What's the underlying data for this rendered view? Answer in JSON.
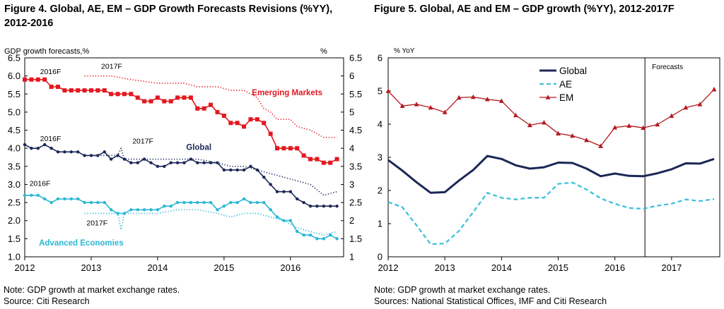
{
  "colors": {
    "em": "#e3181f",
    "global": "#1b2756",
    "ae": "#2bb7d4",
    "em2": "#b3191f",
    "ae2": "#3ec1dd"
  },
  "figure4": {
    "title_line1": "Figure 4. Global, AE, EM – GDP Growth Forecasts Revisions (%YY),",
    "title_line2": "2012-2016",
    "note": "Note: GDP growth at market exchange rates.",
    "source": "Source: Citi Research"
  },
  "figure5": {
    "title": "Figure 5. Global, AE and EM – GDP growth (%YY), 2012-2017F",
    "note": "Note: GDP growth at market exchange rates.",
    "source": "Sources: National Statistical Offices, IMF and Citi Research"
  },
  "chart_data": [
    {
      "type": "line",
      "ylabel_left": "GDP growth forecasts,%",
      "ylabel_right": "%",
      "xlim": [
        2012,
        2016.8
      ],
      "ylim": [
        1.0,
        6.5
      ],
      "xticks": [
        2012,
        2013,
        2014,
        2015,
        2016
      ],
      "xtick_labels": [
        "2012",
        "2013",
        "2014",
        "2015",
        "2016"
      ],
      "yticks": [
        1.0,
        1.5,
        2.0,
        2.5,
        3.0,
        3.5,
        4.0,
        4.5,
        5.0,
        5.5,
        6.0,
        6.5
      ],
      "ytick_labels_left": [
        "1.0",
        "1.5",
        "2.0",
        "2.5",
        "3.0",
        "3.5",
        "4.0",
        "4.5",
        "5.0",
        "5.5",
        "6.0",
        "6.5"
      ],
      "ytick_labels_right": [
        "1",
        "1.5",
        "2",
        "2.5",
        "3",
        "3.5",
        "4",
        "4.5",
        "5",
        "5.5",
        "6",
        "6.5"
      ],
      "annotations": [
        {
          "text": "2016F",
          "x": 2012.23,
          "y": 6.05
        },
        {
          "text": "2017F",
          "x": 2013.15,
          "y": 6.2
        },
        {
          "text": "2016F",
          "x": 2012.23,
          "y": 4.2
        },
        {
          "text": "2017F",
          "x": 2013.62,
          "y": 4.13
        },
        {
          "text": "2016F",
          "x": 2012.07,
          "y": 2.96
        },
        {
          "text": "2017F",
          "x": 2012.93,
          "y": 1.87
        }
      ],
      "series_labels": [
        {
          "text": "Emerging Markets",
          "series": "EM 2016F",
          "x": 2015.95,
          "y": 5.47
        },
        {
          "text": "Global",
          "series": "Global 2016F",
          "x": 2014.62,
          "y": 3.95
        },
        {
          "text": "Advanced Economies",
          "series": "AE 2016F",
          "x": 2012.85,
          "y": 1.31
        }
      ],
      "series": [
        {
          "name": "EM 2016F",
          "style": "solid-square",
          "color": "em",
          "x": [
            2012.0,
            2012.1,
            2012.2,
            2012.3,
            2012.4,
            2012.5,
            2012.6,
            2012.7,
            2012.8,
            2012.9,
            2013.0,
            2013.1,
            2013.2,
            2013.3,
            2013.4,
            2013.5,
            2013.6,
            2013.7,
            2013.8,
            2013.9,
            2014.0,
            2014.1,
            2014.2,
            2014.3,
            2014.4,
            2014.5,
            2014.6,
            2014.7,
            2014.8,
            2014.9,
            2015.0,
            2015.1,
            2015.2,
            2015.3,
            2015.4,
            2015.5,
            2015.6,
            2015.7,
            2015.8,
            2015.9,
            2016.0,
            2016.1,
            2016.2,
            2016.3,
            2016.4,
            2016.5,
            2016.6,
            2016.7
          ],
          "y": [
            5.9,
            5.9,
            5.9,
            5.9,
            5.7,
            5.7,
            5.6,
            5.6,
            5.6,
            5.6,
            5.6,
            5.6,
            5.6,
            5.5,
            5.5,
            5.5,
            5.5,
            5.4,
            5.3,
            5.3,
            5.4,
            5.3,
            5.3,
            5.4,
            5.4,
            5.4,
            5.1,
            5.1,
            5.2,
            5.0,
            4.9,
            4.7,
            4.7,
            4.6,
            4.8,
            4.8,
            4.7,
            4.4,
            4.0,
            4.0,
            4.0,
            4.0,
            3.8,
            3.7,
            3.7,
            3.6,
            3.6,
            3.7
          ]
        },
        {
          "name": "EM 2017F",
          "style": "dotted",
          "color": "em",
          "x": [
            2012.9,
            2013.3,
            2013.6,
            2014.0,
            2014.4,
            2014.6,
            2014.9,
            2015.1,
            2015.3,
            2015.5,
            2015.6,
            2015.7,
            2015.8,
            2016.0,
            2016.1,
            2016.3,
            2016.5,
            2016.7
          ],
          "y": [
            6.0,
            6.0,
            5.9,
            5.8,
            5.8,
            5.7,
            5.7,
            5.6,
            5.6,
            5.4,
            5.1,
            5.0,
            4.8,
            4.8,
            4.6,
            4.5,
            4.3,
            4.3
          ]
        },
        {
          "name": "Global 2016F",
          "style": "solid-dot",
          "color": "global",
          "x": [
            2012.0,
            2012.1,
            2012.2,
            2012.3,
            2012.4,
            2012.5,
            2012.6,
            2012.7,
            2012.8,
            2012.9,
            2013.0,
            2013.1,
            2013.2,
            2013.3,
            2013.4,
            2013.5,
            2013.6,
            2013.7,
            2013.8,
            2013.9,
            2014.0,
            2014.1,
            2014.2,
            2014.3,
            2014.4,
            2014.5,
            2014.6,
            2014.7,
            2014.8,
            2014.9,
            2015.0,
            2015.1,
            2015.2,
            2015.3,
            2015.4,
            2015.5,
            2015.6,
            2015.7,
            2015.8,
            2015.9,
            2016.0,
            2016.1,
            2016.2,
            2016.3,
            2016.4,
            2016.5,
            2016.6,
            2016.7
          ],
          "y": [
            4.1,
            4.0,
            4.0,
            4.1,
            4.0,
            3.9,
            3.9,
            3.9,
            3.9,
            3.8,
            3.8,
            3.8,
            3.9,
            3.7,
            3.8,
            3.7,
            3.6,
            3.6,
            3.7,
            3.6,
            3.5,
            3.5,
            3.6,
            3.6,
            3.6,
            3.7,
            3.6,
            3.6,
            3.6,
            3.6,
            3.4,
            3.4,
            3.4,
            3.4,
            3.5,
            3.4,
            3.2,
            3.0,
            2.8,
            2.8,
            2.8,
            2.6,
            2.5,
            2.4,
            2.4,
            2.4,
            2.4,
            2.4
          ]
        },
        {
          "name": "Global 2017F",
          "style": "dotted",
          "color": "global",
          "x": [
            2012.9,
            2013.2,
            2013.4,
            2013.45,
            2013.5,
            2013.6,
            2013.8,
            2014.0,
            2014.3,
            2014.6,
            2014.9,
            2015.1,
            2015.3,
            2015.5,
            2015.7,
            2015.9,
            2016.1,
            2016.3,
            2016.5,
            2016.7
          ],
          "y": [
            3.8,
            3.8,
            3.8,
            4.0,
            3.7,
            3.7,
            3.7,
            3.7,
            3.7,
            3.7,
            3.6,
            3.5,
            3.5,
            3.4,
            3.3,
            3.2,
            3.1,
            3.0,
            2.7,
            2.8
          ]
        },
        {
          "name": "AE 2016F",
          "style": "solid-dot",
          "color": "ae",
          "x": [
            2012.0,
            2012.1,
            2012.2,
            2012.3,
            2012.4,
            2012.5,
            2012.6,
            2012.7,
            2012.8,
            2012.9,
            2013.0,
            2013.1,
            2013.2,
            2013.3,
            2013.4,
            2013.5,
            2013.6,
            2013.7,
            2013.8,
            2013.9,
            2014.0,
            2014.1,
            2014.2,
            2014.3,
            2014.4,
            2014.5,
            2014.6,
            2014.7,
            2014.8,
            2014.9,
            2015.0,
            2015.1,
            2015.2,
            2015.3,
            2015.4,
            2015.5,
            2015.6,
            2015.7,
            2015.8,
            2015.9,
            2016.0,
            2016.1,
            2016.2,
            2016.3,
            2016.4,
            2016.5,
            2016.6,
            2016.7
          ],
          "y": [
            2.7,
            2.7,
            2.7,
            2.6,
            2.5,
            2.6,
            2.6,
            2.6,
            2.6,
            2.5,
            2.5,
            2.5,
            2.5,
            2.3,
            2.2,
            2.2,
            2.3,
            2.3,
            2.3,
            2.3,
            2.3,
            2.4,
            2.4,
            2.5,
            2.5,
            2.5,
            2.5,
            2.5,
            2.5,
            2.3,
            2.4,
            2.5,
            2.5,
            2.6,
            2.5,
            2.5,
            2.5,
            2.3,
            2.1,
            2.0,
            2.0,
            1.7,
            1.6,
            1.6,
            1.5,
            1.5,
            1.6,
            1.5
          ]
        },
        {
          "name": "AE 2017F",
          "style": "dotted",
          "color": "ae",
          "x": [
            2012.9,
            2013.2,
            2013.4,
            2013.45,
            2013.5,
            2013.6,
            2013.8,
            2014.0,
            2014.3,
            2014.6,
            2014.9,
            2015.1,
            2015.3,
            2015.5,
            2015.7,
            2015.9,
            2016.1,
            2016.3,
            2016.5,
            2016.7
          ],
          "y": [
            2.2,
            2.2,
            2.2,
            1.75,
            2.2,
            2.2,
            2.2,
            2.2,
            2.3,
            2.3,
            2.2,
            2.1,
            2.2,
            2.2,
            2.1,
            2.0,
            1.8,
            1.7,
            1.6,
            1.7
          ]
        }
      ]
    },
    {
      "type": "line",
      "ylabel": "% YoY",
      "xlim": [
        2012,
        2017.85
      ],
      "ylim": [
        0,
        6
      ],
      "xticks": [
        2012,
        2013,
        2014,
        2015,
        2016,
        2017
      ],
      "xtick_labels": [
        "2012",
        "2013",
        "2014",
        "2015",
        "2016",
        "2017"
      ],
      "yticks": [
        0,
        1,
        2,
        3,
        4,
        5,
        6
      ],
      "ytick_labels": [
        "0",
        "1",
        "2",
        "3",
        "4",
        "5",
        "6"
      ],
      "forecast_line_x": 2016.53,
      "forecast_label": "Forecasts",
      "legend_position": "top-center",
      "series": [
        {
          "name": "Global",
          "style": "solid-thick",
          "color": "global",
          "x": [
            2012.0,
            2012.25,
            2012.5,
            2012.75,
            2013.0,
            2013.25,
            2013.5,
            2013.75,
            2014.0,
            2014.25,
            2014.5,
            2014.75,
            2015.0,
            2015.25,
            2015.5,
            2015.75,
            2016.0,
            2016.25,
            2016.5,
            2016.75,
            2017.0,
            2017.25,
            2017.5,
            2017.75
          ],
          "y": [
            2.92,
            2.6,
            2.25,
            1.93,
            1.95,
            2.3,
            2.62,
            3.04,
            2.95,
            2.76,
            2.66,
            2.7,
            2.84,
            2.83,
            2.66,
            2.43,
            2.51,
            2.44,
            2.43,
            2.52,
            2.64,
            2.82,
            2.81,
            2.95
          ]
        },
        {
          "name": "AE",
          "style": "dashed",
          "color": "ae2",
          "x": [
            2012.0,
            2012.25,
            2012.5,
            2012.75,
            2013.0,
            2013.25,
            2013.5,
            2013.75,
            2014.0,
            2014.25,
            2014.5,
            2014.75,
            2015.0,
            2015.25,
            2015.5,
            2015.75,
            2016.0,
            2016.25,
            2016.5,
            2016.75,
            2017.0,
            2017.25,
            2017.5,
            2017.75
          ],
          "y": [
            1.65,
            1.5,
            0.95,
            0.38,
            0.4,
            0.78,
            1.35,
            1.93,
            1.78,
            1.73,
            1.78,
            1.78,
            2.2,
            2.24,
            2.03,
            1.76,
            1.6,
            1.47,
            1.45,
            1.54,
            1.6,
            1.73,
            1.68,
            1.74
          ]
        },
        {
          "name": "EM",
          "style": "solid-triangle",
          "color": "em2",
          "x": [
            2012.0,
            2012.25,
            2012.5,
            2012.75,
            2013.0,
            2013.25,
            2013.5,
            2013.75,
            2014.0,
            2014.25,
            2014.5,
            2014.75,
            2015.0,
            2015.25,
            2015.5,
            2015.75,
            2016.0,
            2016.25,
            2016.5,
            2016.75,
            2017.0,
            2017.25,
            2017.5,
            2017.75
          ],
          "y": [
            5.0,
            4.55,
            4.6,
            4.5,
            4.36,
            4.8,
            4.82,
            4.75,
            4.7,
            4.27,
            3.97,
            4.05,
            3.72,
            3.65,
            3.52,
            3.34,
            3.9,
            3.95,
            3.89,
            3.99,
            4.25,
            4.5,
            4.6,
            5.05
          ]
        }
      ]
    }
  ]
}
